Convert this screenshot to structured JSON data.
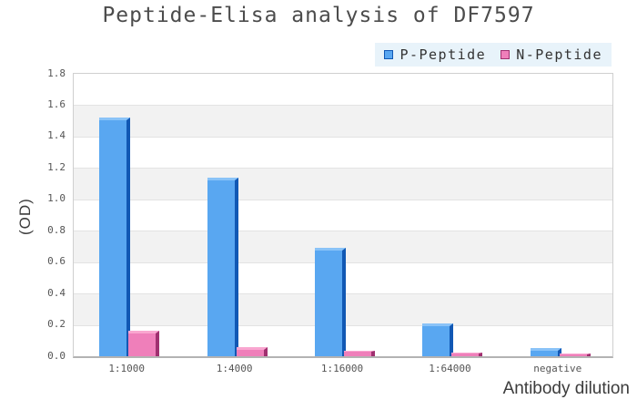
{
  "title": "Peptide-Elisa analysis of DF7597",
  "axis_titles": {
    "x": "Antibody dilution",
    "y": "(OD)"
  },
  "legend": {
    "background": "#e8f3fa",
    "items": [
      {
        "label": "P-Peptide"
      },
      {
        "label": "N-Peptide"
      }
    ]
  },
  "colors": {
    "p_fill": "#59a7f1",
    "p_dark": "#1158b4",
    "p_light": "#8ac3f8",
    "n_fill": "#ef7fba",
    "n_dark": "#a03070",
    "n_light": "#f9a6d0",
    "band": "#f2f2f2",
    "gridline": "#e3e3e3",
    "frame": "#cfcfcf",
    "legend_bg": "#e8f3fa",
    "title_text": "#4c4c4c",
    "tick_text": "#555555",
    "axis_text": "#3c3c3c"
  },
  "chart_data": {
    "type": "bar",
    "title": "Peptide-Elisa analysis of DF7597",
    "categories": [
      "1:1000",
      "1:4000",
      "1:16000",
      "1:64000",
      "negative"
    ],
    "series": [
      {
        "name": "P-Peptide",
        "color": "#59a7f1",
        "values": [
          1.52,
          1.14,
          0.69,
          0.21,
          0.05
        ]
      },
      {
        "name": "N-Peptide",
        "color": "#ef7fba",
        "values": [
          0.16,
          0.06,
          0.035,
          0.025,
          0.02
        ]
      }
    ],
    "xlabel": "Antibody dilution",
    "ylabel": "(OD)",
    "ylim": [
      0,
      1.8
    ],
    "ytick_step": 0.2,
    "y_ticks": [
      "0.0",
      "0.2",
      "0.4",
      "0.6",
      "0.8",
      "1.0",
      "1.2",
      "1.4",
      "1.6",
      "1.8"
    ],
    "grid": "horizontal-bands",
    "legend_position": "top-right",
    "bar_style": "pseudo-3d"
  }
}
